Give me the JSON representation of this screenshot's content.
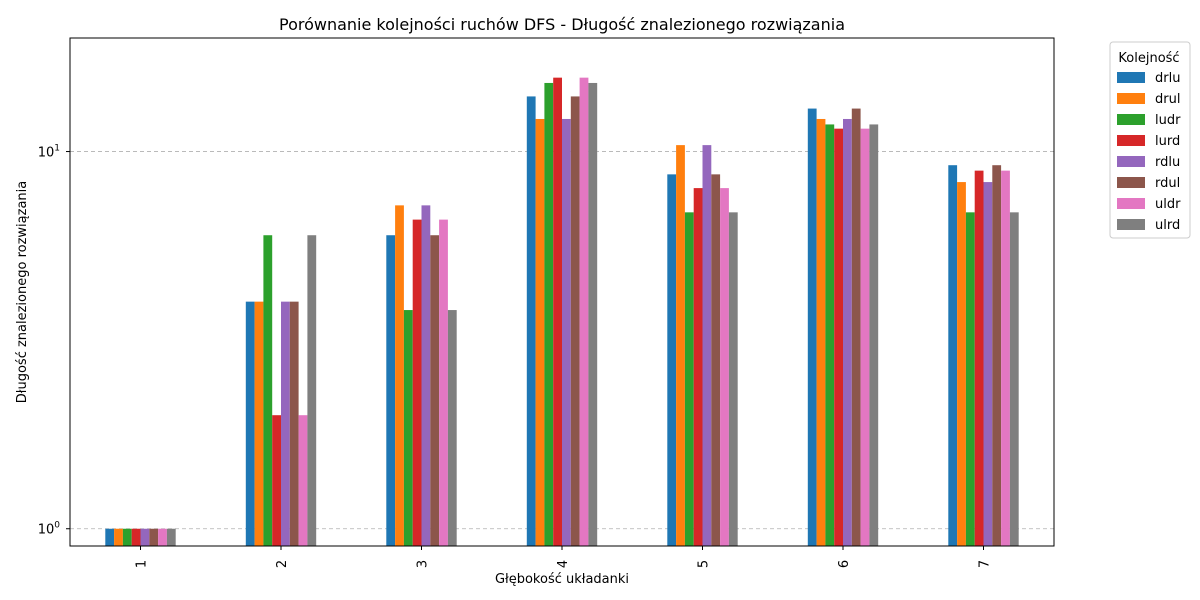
{
  "chart_data": {
    "type": "bar",
    "title": "Porównanie kolejności ruchów DFS - Długość znalezionego rozwiązania",
    "xlabel": "Głębokość układanki",
    "ylabel": "Długość znalezionego rozwiązania",
    "categories": [
      "1",
      "2",
      "3",
      "4",
      "5",
      "6",
      "7"
    ],
    "y_scale": "log",
    "ylim": [
      0.9,
      20
    ],
    "y_ticks": [
      {
        "value": 1,
        "label_base": "10",
        "label_exp": "0"
      },
      {
        "value": 10,
        "label_base": "10",
        "label_exp": "1"
      }
    ],
    "grid": "y-major-dashed",
    "legend": {
      "title": "Kolejność",
      "placement": "outside-top-right"
    },
    "series": [
      {
        "name": "drlu",
        "color": "#1f77b4",
        "values": [
          1,
          4,
          6,
          14,
          8.7,
          13,
          9.2
        ]
      },
      {
        "name": "drul",
        "color": "#ff7f0e",
        "values": [
          1,
          4,
          7.2,
          12.2,
          10.4,
          12.2,
          8.3
        ]
      },
      {
        "name": "ludr",
        "color": "#2ca02c",
        "values": [
          1,
          6,
          3.8,
          15.2,
          6.9,
          11.8,
          6.9
        ]
      },
      {
        "name": "lurd",
        "color": "#d62728",
        "values": [
          1,
          2,
          6.6,
          15.7,
          8,
          11.5,
          8.9
        ]
      },
      {
        "name": "rdlu",
        "color": "#9467bd",
        "values": [
          1,
          4,
          7.2,
          12.2,
          10.4,
          12.2,
          8.3
        ]
      },
      {
        "name": "rdul",
        "color": "#8c564b",
        "values": [
          1,
          4,
          6,
          14,
          8.7,
          13,
          9.2
        ]
      },
      {
        "name": "uldr",
        "color": "#e377c2",
        "values": [
          1,
          2,
          6.6,
          15.7,
          8,
          11.5,
          8.9
        ]
      },
      {
        "name": "ulrd",
        "color": "#7f7f7f",
        "values": [
          1,
          6,
          3.8,
          15.2,
          6.9,
          11.8,
          6.9
        ]
      }
    ]
  }
}
